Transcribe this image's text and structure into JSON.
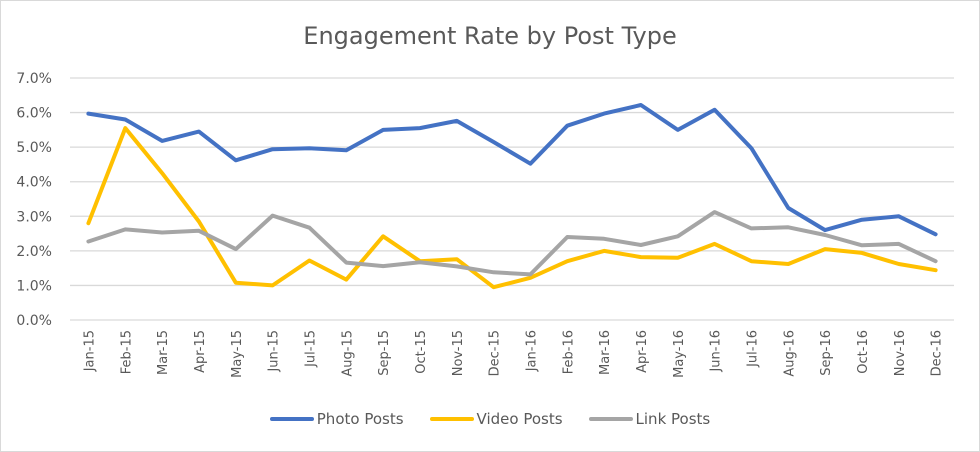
{
  "chart_data": {
    "type": "line",
    "title": "Engagement Rate by Post Type",
    "xlabel": "",
    "ylabel": "",
    "ylim": [
      0,
      7
    ],
    "yticks": [
      "0.0%",
      "1.0%",
      "2.0%",
      "3.0%",
      "4.0%",
      "5.0%",
      "6.0%",
      "7.0%"
    ],
    "grid": true,
    "legend_position": "bottom",
    "categories": [
      "Jan-15",
      "Feb-15",
      "Mar-15",
      "Apr-15",
      "May-15",
      "Jun-15",
      "Jul-15",
      "Aug-15",
      "Sep-15",
      "Oct-15",
      "Nov-15",
      "Dec-15",
      "Jan-16",
      "Feb-16",
      "Mar-16",
      "Apr-16",
      "May-16",
      "Jun-16",
      "Jul-16",
      "Aug-16",
      "Sep-16",
      "Oct-16",
      "Nov-16",
      "Dec-16"
    ],
    "series": [
      {
        "name": "Photo Posts",
        "color": "#4472c4",
        "values": [
          5.97,
          5.8,
          5.18,
          5.45,
          4.62,
          4.94,
          4.97,
          4.91,
          5.5,
          5.55,
          5.76,
          5.15,
          4.52,
          5.62,
          5.97,
          6.22,
          5.5,
          6.08,
          4.97,
          3.24,
          2.6,
          2.9,
          3.0,
          2.48
        ]
      },
      {
        "name": "Video Posts",
        "color": "#ffc000",
        "values": [
          2.8,
          5.55,
          4.25,
          2.85,
          1.08,
          1.0,
          1.72,
          1.17,
          2.42,
          1.7,
          1.76,
          0.95,
          1.22,
          1.7,
          2.0,
          1.82,
          1.8,
          2.2,
          1.7,
          1.62,
          2.05,
          1.94,
          1.62,
          1.44
        ]
      },
      {
        "name": "Link Posts",
        "color": "#a5a5a5",
        "values": [
          2.27,
          2.62,
          2.53,
          2.58,
          2.05,
          3.02,
          2.67,
          1.66,
          1.56,
          1.67,
          1.55,
          1.38,
          1.32,
          2.4,
          2.35,
          2.17,
          2.42,
          3.12,
          2.65,
          2.68,
          2.46,
          2.16,
          2.2,
          1.7
        ]
      }
    ]
  },
  "colors": {
    "gridline": "#d9d9d9",
    "text": "#595959"
  }
}
